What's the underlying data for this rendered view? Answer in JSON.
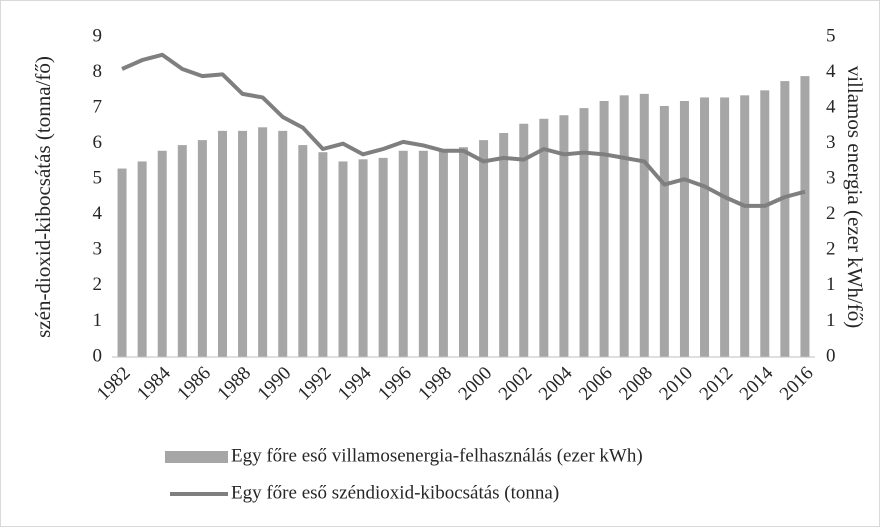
{
  "chart_data": {
    "type": "bar-line",
    "categories": [
      "1982",
      null,
      "1984",
      null,
      "1986",
      null,
      "1988",
      null,
      "1990",
      null,
      "1992",
      null,
      "1994",
      null,
      "1996",
      null,
      "1998",
      null,
      "2000",
      null,
      "2002",
      null,
      "2004",
      null,
      "2006",
      null,
      "2008",
      null,
      "2010",
      null,
      "2012",
      null,
      "2014",
      null,
      "2016"
    ],
    "series": [
      {
        "name": "Egy főre eső villamosenergia-felhasználás (ezer kWh)",
        "type": "bar",
        "axis": "y2",
        "color": "#a6a6a6",
        "values": [
          2.65,
          2.75,
          2.9,
          2.98,
          3.05,
          3.18,
          3.18,
          3.23,
          3.18,
          2.98,
          2.88,
          2.75,
          2.78,
          2.8,
          2.9,
          2.9,
          2.9,
          2.95,
          3.05,
          3.15,
          3.28,
          3.35,
          3.4,
          3.5,
          3.6,
          3.68,
          3.7,
          3.53,
          3.6,
          3.65,
          3.65,
          3.68,
          3.75,
          3.88,
          3.95
        ]
      },
      {
        "name": "Egy főre eső széndioxid-kibocsátás (tonna)",
        "type": "line",
        "axis": "y",
        "color": "#7f7f7f",
        "values": [
          8.1,
          8.35,
          8.5,
          8.1,
          7.9,
          7.95,
          7.4,
          7.3,
          6.75,
          6.45,
          5.85,
          6.0,
          5.7,
          5.85,
          6.05,
          5.95,
          5.8,
          5.8,
          5.5,
          5.6,
          5.55,
          5.85,
          5.7,
          5.75,
          5.7,
          5.6,
          5.5,
          4.85,
          5.0,
          4.8,
          4.5,
          4.25,
          4.25,
          4.5,
          4.65
        ]
      }
    ],
    "ylabel": "szén-dioxid-kibocsátás (tonna/fő)",
    "y2label": "villamos energia (ezer kWh/fő)",
    "ylim": [
      0,
      9
    ],
    "yticks": [
      0,
      1,
      2,
      3,
      4,
      5,
      6,
      7,
      8,
      9
    ],
    "y2lim": [
      0,
      4.5
    ],
    "y2ticks": [
      0,
      {
        "value": 0.5,
        "label": "1"
      },
      1,
      {
        "value": 1.5,
        "label": "2"
      },
      2,
      {
        "value": 2.5,
        "label": "3"
      },
      3,
      {
        "value": 3.5,
        "label": "4"
      },
      4,
      {
        "value": 4.5,
        "label": "5"
      }
    ],
    "grid": false,
    "legend": "bottom"
  }
}
